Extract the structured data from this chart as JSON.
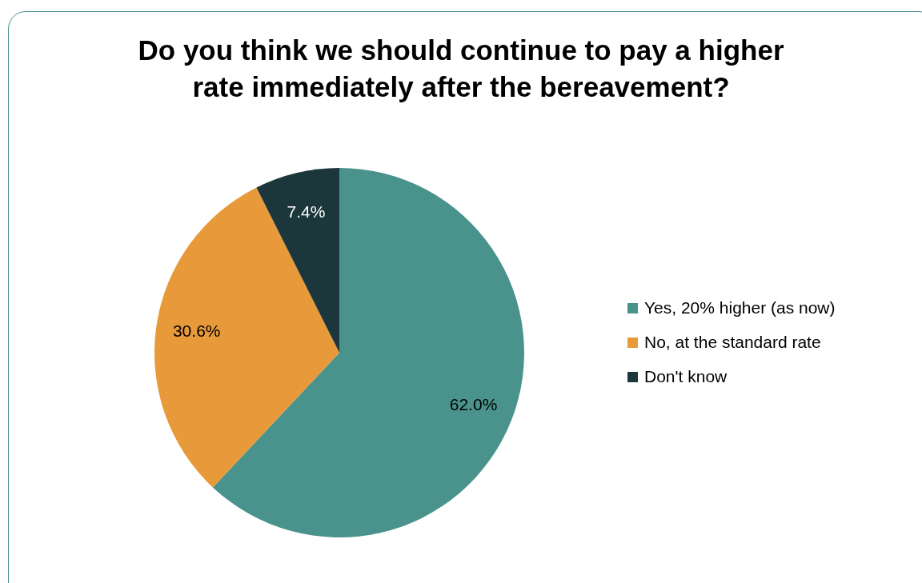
{
  "chart_data": {
    "type": "pie",
    "title": "Do you think we should continue to pay a higher rate immediately after the bereavement?",
    "categories": [
      "Yes, 20% higher (as now)",
      "No, at the standard rate",
      "Don't know"
    ],
    "values": [
      62.0,
      30.6,
      7.4
    ],
    "colors": [
      "#4a938c",
      "#e8993a",
      "#1c373b"
    ],
    "value_labels": [
      "62.0%",
      "30.6%",
      "7.4%"
    ],
    "legend": "right"
  }
}
